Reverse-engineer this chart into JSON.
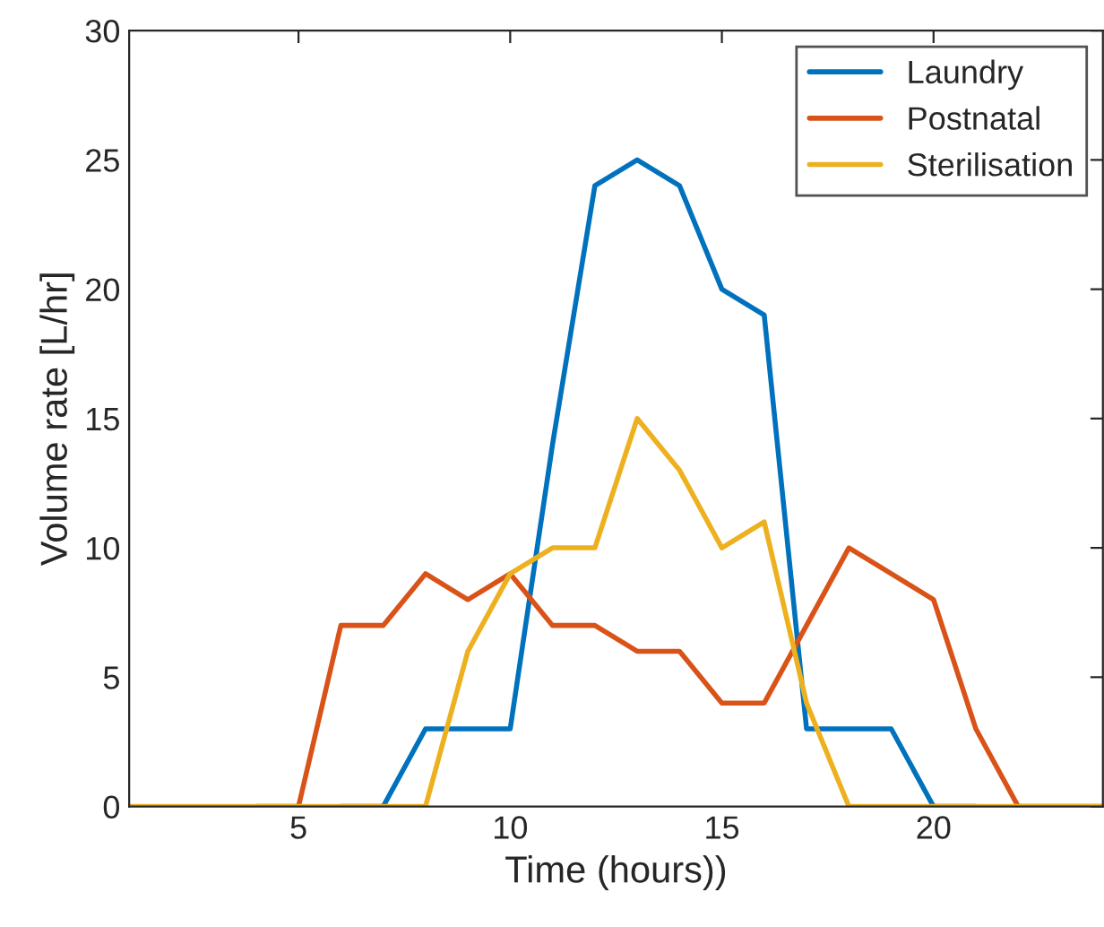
{
  "chart_data": {
    "type": "line",
    "xlabel": "Time (hours))",
    "ylabel": "Volume rate [L/hr]",
    "x": [
      1,
      2,
      3,
      4,
      5,
      6,
      7,
      8,
      9,
      10,
      11,
      12,
      13,
      14,
      15,
      16,
      17,
      18,
      19,
      20,
      21,
      22,
      23,
      24
    ],
    "series": [
      {
        "name": "Laundry",
        "color": "#0072bd",
        "values": [
          null,
          null,
          null,
          null,
          null,
          0,
          0,
          3,
          3,
          3,
          14,
          24,
          25,
          24,
          20,
          19,
          3,
          3,
          3,
          0,
          0,
          null,
          null,
          null
        ]
      },
      {
        "name": "Postnatal",
        "color": "#d95319",
        "values": [
          null,
          null,
          null,
          0,
          0,
          7,
          7,
          9,
          8,
          9,
          7,
          7,
          6,
          6,
          4,
          4,
          7,
          10,
          9,
          8,
          3,
          0,
          0,
          0
        ]
      },
      {
        "name": "Sterilisation",
        "color": "#edb120",
        "values": [
          0,
          0,
          0,
          0,
          0,
          0,
          0,
          0,
          6,
          9,
          10,
          10,
          15,
          13,
          10,
          11,
          4,
          0,
          0,
          0,
          0,
          0,
          0,
          0
        ]
      }
    ],
    "xlim": [
      1,
      24
    ],
    "xticks": [
      5,
      10,
      15,
      20
    ],
    "ylim": [
      0,
      30
    ],
    "yticks": [
      0,
      5,
      10,
      15,
      20,
      25,
      30
    ],
    "grid": false,
    "legend": "top right"
  }
}
